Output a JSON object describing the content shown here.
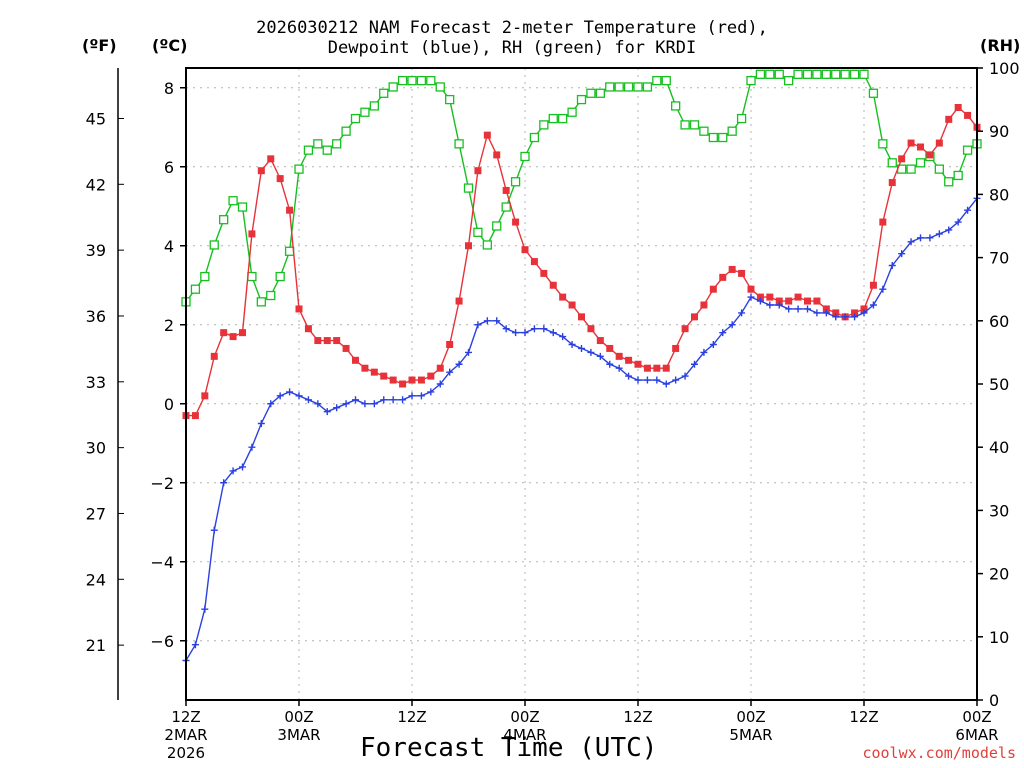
{
  "title_line1": "2026030212 NAM Forecast 2-meter Temperature (red),",
  "title_line2": "Dewpoint (blue), RH (green) for KRDI",
  "unit_f": "(ºF)",
  "unit_c": "(ºC)",
  "unit_rh": "(RH)",
  "credit": "coolwx.com/models",
  "colors": {
    "temperature": "#e8323a",
    "dewpoint": "#2a40e0",
    "rh": "#16c020",
    "grid": "#b4b4b4"
  },
  "chart_data": {
    "type": "line",
    "title": "2026030212 NAM Forecast 2-meter Temperature (red), Dewpoint (blue), RH (green) for KRDI",
    "xlabel": "Forecast Time (UTC)",
    "x_unit": "forecast hour",
    "xlim": [
      0,
      84
    ],
    "x_ticks": [
      {
        "hour": 0,
        "lines": [
          "12Z",
          "2MAR",
          "2026"
        ]
      },
      {
        "hour": 12,
        "lines": [
          "00Z",
          "3MAR"
        ]
      },
      {
        "hour": 24,
        "lines": [
          "12Z"
        ]
      },
      {
        "hour": 36,
        "lines": [
          "00Z",
          "4MAR"
        ]
      },
      {
        "hour": 48,
        "lines": [
          "12Z"
        ]
      },
      {
        "hour": 60,
        "lines": [
          "00Z",
          "5MAR"
        ]
      },
      {
        "hour": 72,
        "lines": [
          "12Z"
        ]
      },
      {
        "hour": 84,
        "lines": [
          "00Z",
          "6MAR"
        ]
      }
    ],
    "y_left_celsius": {
      "label": "(ºC)",
      "ylim": [
        -7.5,
        8.5
      ],
      "ticks": [
        -6,
        -4,
        -2,
        0,
        2,
        4,
        6,
        8
      ]
    },
    "y_left_fahrenheit": {
      "label": "(ºF)",
      "ticks": [
        21,
        24,
        27,
        30,
        33,
        36,
        39,
        42,
        45
      ]
    },
    "y_right_rh": {
      "label": "(RH)",
      "ylim": [
        0,
        100
      ],
      "ticks": [
        0,
        10,
        20,
        30,
        40,
        50,
        60,
        70,
        80,
        90,
        100
      ]
    },
    "series": [
      {
        "name": "Temperature",
        "axis": "celsius",
        "marker": "filled-square",
        "points": [
          [
            0,
            -0.3
          ],
          [
            1,
            -0.3
          ],
          [
            2,
            0.2
          ],
          [
            3,
            1.2
          ],
          [
            4,
            1.8
          ],
          [
            5,
            1.7
          ],
          [
            6,
            1.8
          ],
          [
            7,
            4.3
          ],
          [
            8,
            5.9
          ],
          [
            9,
            6.2
          ],
          [
            10,
            5.7
          ],
          [
            11,
            4.9
          ],
          [
            12,
            2.4
          ],
          [
            13,
            1.9
          ],
          [
            14,
            1.6
          ],
          [
            15,
            1.6
          ],
          [
            16,
            1.6
          ],
          [
            17,
            1.4
          ],
          [
            18,
            1.1
          ],
          [
            19,
            0.9
          ],
          [
            20,
            0.8
          ],
          [
            21,
            0.7
          ],
          [
            22,
            0.6
          ],
          [
            23,
            0.5
          ],
          [
            24,
            0.6
          ],
          [
            25,
            0.6
          ],
          [
            26,
            0.7
          ],
          [
            27,
            0.9
          ],
          [
            28,
            1.5
          ],
          [
            29,
            2.6
          ],
          [
            30,
            4.0
          ],
          [
            31,
            5.9
          ],
          [
            32,
            6.8
          ],
          [
            33,
            6.3
          ],
          [
            34,
            5.4
          ],
          [
            35,
            4.6
          ],
          [
            36,
            3.9
          ],
          [
            37,
            3.6
          ],
          [
            38,
            3.3
          ],
          [
            39,
            3.0
          ],
          [
            40,
            2.7
          ],
          [
            41,
            2.5
          ],
          [
            42,
            2.2
          ],
          [
            43,
            1.9
          ],
          [
            44,
            1.6
          ],
          [
            45,
            1.4
          ],
          [
            46,
            1.2
          ],
          [
            47,
            1.1
          ],
          [
            48,
            1.0
          ],
          [
            49,
            0.9
          ],
          [
            50,
            0.9
          ],
          [
            51,
            0.9
          ],
          [
            52,
            1.4
          ],
          [
            53,
            1.9
          ],
          [
            54,
            2.2
          ],
          [
            55,
            2.5
          ],
          [
            56,
            2.9
          ],
          [
            57,
            3.2
          ],
          [
            58,
            3.4
          ],
          [
            59,
            3.3
          ],
          [
            60,
            2.9
          ],
          [
            61,
            2.7
          ],
          [
            62,
            2.7
          ],
          [
            63,
            2.6
          ],
          [
            64,
            2.6
          ],
          [
            65,
            2.7
          ],
          [
            66,
            2.6
          ],
          [
            67,
            2.6
          ],
          [
            68,
            2.4
          ],
          [
            69,
            2.3
          ],
          [
            70,
            2.2
          ],
          [
            71,
            2.3
          ],
          [
            72,
            2.4
          ],
          [
            73,
            3.0
          ],
          [
            74,
            4.6
          ],
          [
            75,
            5.6
          ],
          [
            76,
            6.2
          ],
          [
            77,
            6.6
          ],
          [
            78,
            6.5
          ],
          [
            79,
            6.3
          ],
          [
            80,
            6.6
          ],
          [
            81,
            7.2
          ],
          [
            82,
            7.5
          ],
          [
            83,
            7.3
          ],
          [
            84,
            7.0
          ]
        ]
      },
      {
        "name": "Dewpoint",
        "axis": "celsius",
        "marker": "cross",
        "points": [
          [
            0,
            -6.5
          ],
          [
            1,
            -6.1
          ],
          [
            2,
            -5.2
          ],
          [
            3,
            -3.2
          ],
          [
            4,
            -2.0
          ],
          [
            5,
            -1.7
          ],
          [
            6,
            -1.6
          ],
          [
            7,
            -1.1
          ],
          [
            8,
            -0.5
          ],
          [
            9,
            0.0
          ],
          [
            10,
            0.2
          ],
          [
            11,
            0.3
          ],
          [
            12,
            0.2
          ],
          [
            13,
            0.1
          ],
          [
            14,
            0.0
          ],
          [
            15,
            -0.2
          ],
          [
            16,
            -0.1
          ],
          [
            17,
            0.0
          ],
          [
            18,
            0.1
          ],
          [
            19,
            0.0
          ],
          [
            20,
            0.0
          ],
          [
            21,
            0.1
          ],
          [
            22,
            0.1
          ],
          [
            23,
            0.1
          ],
          [
            24,
            0.2
          ],
          [
            25,
            0.2
          ],
          [
            26,
            0.3
          ],
          [
            27,
            0.5
          ],
          [
            28,
            0.8
          ],
          [
            29,
            1.0
          ],
          [
            30,
            1.3
          ],
          [
            31,
            2.0
          ],
          [
            32,
            2.1
          ],
          [
            33,
            2.1
          ],
          [
            34,
            1.9
          ],
          [
            35,
            1.8
          ],
          [
            36,
            1.8
          ],
          [
            37,
            1.9
          ],
          [
            38,
            1.9
          ],
          [
            39,
            1.8
          ],
          [
            40,
            1.7
          ],
          [
            41,
            1.5
          ],
          [
            42,
            1.4
          ],
          [
            43,
            1.3
          ],
          [
            44,
            1.2
          ],
          [
            45,
            1.0
          ],
          [
            46,
            0.9
          ],
          [
            47,
            0.7
          ],
          [
            48,
            0.6
          ],
          [
            49,
            0.6
          ],
          [
            50,
            0.6
          ],
          [
            51,
            0.5
          ],
          [
            52,
            0.6
          ],
          [
            53,
            0.7
          ],
          [
            54,
            1.0
          ],
          [
            55,
            1.3
          ],
          [
            56,
            1.5
          ],
          [
            57,
            1.8
          ],
          [
            58,
            2.0
          ],
          [
            59,
            2.3
          ],
          [
            60,
            2.7
          ],
          [
            61,
            2.6
          ],
          [
            62,
            2.5
          ],
          [
            63,
            2.5
          ],
          [
            64,
            2.4
          ],
          [
            65,
            2.4
          ],
          [
            66,
            2.4
          ],
          [
            67,
            2.3
          ],
          [
            68,
            2.3
          ],
          [
            69,
            2.2
          ],
          [
            70,
            2.2
          ],
          [
            71,
            2.2
          ],
          [
            72,
            2.3
          ],
          [
            73,
            2.5
          ],
          [
            74,
            2.9
          ],
          [
            75,
            3.5
          ],
          [
            76,
            3.8
          ],
          [
            77,
            4.1
          ],
          [
            78,
            4.2
          ],
          [
            79,
            4.2
          ],
          [
            80,
            4.3
          ],
          [
            81,
            4.4
          ],
          [
            82,
            4.6
          ],
          [
            83,
            4.9
          ],
          [
            84,
            5.2
          ]
        ]
      },
      {
        "name": "RH",
        "axis": "rh",
        "marker": "open-square",
        "points": [
          [
            0,
            63
          ],
          [
            1,
            65
          ],
          [
            2,
            67
          ],
          [
            3,
            72
          ],
          [
            4,
            76
          ],
          [
            5,
            79
          ],
          [
            6,
            78
          ],
          [
            7,
            67
          ],
          [
            8,
            63
          ],
          [
            9,
            64
          ],
          [
            10,
            67
          ],
          [
            11,
            71
          ],
          [
            12,
            84
          ],
          [
            13,
            87
          ],
          [
            14,
            88
          ],
          [
            15,
            87
          ],
          [
            16,
            88
          ],
          [
            17,
            90
          ],
          [
            18,
            92
          ],
          [
            19,
            93
          ],
          [
            20,
            94
          ],
          [
            21,
            96
          ],
          [
            22,
            97
          ],
          [
            23,
            98
          ],
          [
            24,
            98
          ],
          [
            25,
            98
          ],
          [
            26,
            98
          ],
          [
            27,
            97
          ],
          [
            28,
            95
          ],
          [
            29,
            88
          ],
          [
            30,
            81
          ],
          [
            31,
            74
          ],
          [
            32,
            72
          ],
          [
            33,
            75
          ],
          [
            34,
            78
          ],
          [
            35,
            82
          ],
          [
            36,
            86
          ],
          [
            37,
            89
          ],
          [
            38,
            91
          ],
          [
            39,
            92
          ],
          [
            40,
            92
          ],
          [
            41,
            93
          ],
          [
            42,
            95
          ],
          [
            43,
            96
          ],
          [
            44,
            96
          ],
          [
            45,
            97
          ],
          [
            46,
            97
          ],
          [
            47,
            97
          ],
          [
            48,
            97
          ],
          [
            49,
            97
          ],
          [
            50,
            98
          ],
          [
            51,
            98
          ],
          [
            52,
            94
          ],
          [
            53,
            91
          ],
          [
            54,
            91
          ],
          [
            55,
            90
          ],
          [
            56,
            89
          ],
          [
            57,
            89
          ],
          [
            58,
            90
          ],
          [
            59,
            92
          ],
          [
            60,
            98
          ],
          [
            61,
            99
          ],
          [
            62,
            99
          ],
          [
            63,
            99
          ],
          [
            64,
            98
          ],
          [
            65,
            99
          ],
          [
            66,
            99
          ],
          [
            67,
            99
          ],
          [
            68,
            99
          ],
          [
            69,
            99
          ],
          [
            70,
            99
          ],
          [
            71,
            99
          ],
          [
            72,
            99
          ],
          [
            73,
            96
          ],
          [
            74,
            88
          ],
          [
            75,
            85
          ],
          [
            76,
            84
          ],
          [
            77,
            84
          ],
          [
            78,
            85
          ],
          [
            79,
            86
          ],
          [
            80,
            84
          ],
          [
            81,
            82
          ],
          [
            82,
            83
          ],
          [
            83,
            87
          ],
          [
            84,
            88
          ]
        ]
      }
    ]
  }
}
